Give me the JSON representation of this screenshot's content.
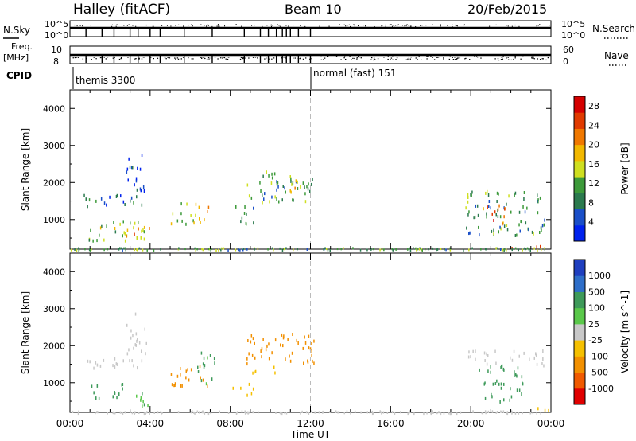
{
  "header": {
    "title": "Halley (fitACF)",
    "beam": "Beam 10",
    "date": "20/Feb/2015"
  },
  "strips": {
    "nsky_label": "N.Sky",
    "nsky_ticks": [
      "10^5",
      "10^0"
    ],
    "nsearch_label": "N.Search",
    "nsearch_ticks": [
      "10^5",
      "10^0"
    ],
    "freq_label_1": "Freq.",
    "freq_label_2": "[MHz]",
    "freq_ticks": [
      "10",
      "8"
    ],
    "nave_label": "Nave",
    "nave_ticks": [
      "60",
      "0"
    ],
    "cpid_label": "CPID",
    "cpid_modes": [
      "themis 3300",
      "normal (fast) 151"
    ]
  },
  "chart_data": [
    {
      "type": "heatmap",
      "name": "power-panel",
      "ylabel": "Slant Range [km]",
      "y_ticks": [
        "1000",
        "2000",
        "3000",
        "4000"
      ],
      "ylim": [
        200,
        4500
      ],
      "xlim_hours": [
        0,
        24
      ],
      "marker_hour": 12,
      "colorbar": {
        "label": "Power [dB]",
        "ticks": [
          "4",
          "8",
          "12",
          "16",
          "20",
          "24",
          "28"
        ],
        "colors": [
          "#0022ee",
          "#1a4fc8",
          "#2b7a4e",
          "#3d9a3a",
          "#cfdf20",
          "#f2b800",
          "#f07800",
          "#e03a00",
          "#d40000"
        ],
        "range": [
          0,
          30
        ]
      },
      "echo_regions": [
        {
          "t": [
            0.6,
            3.8
          ],
          "r": [
            1350,
            1700
          ],
          "level": 6
        },
        {
          "t": [
            2.8,
            3.8
          ],
          "r": [
            1800,
            2900
          ],
          "level": 4
        },
        {
          "t": [
            0.9,
            4.0
          ],
          "r": [
            450,
            1000
          ],
          "level": 14
        },
        {
          "t": [
            2.5,
            4.0
          ],
          "r": [
            550,
            850
          ],
          "level": 20
        },
        {
          "t": [
            5.0,
            6.9
          ],
          "r": [
            900,
            1500
          ],
          "level": 16
        },
        {
          "t": [
            8.0,
            9.2
          ],
          "r": [
            900,
            1400
          ],
          "level": 8
        },
        {
          "t": [
            8.8,
            12.2
          ],
          "r": [
            1500,
            2350
          ],
          "level": 10
        },
        {
          "t": [
            10.6,
            11.6
          ],
          "r": [
            1700,
            2100
          ],
          "level": 18
        },
        {
          "t": [
            19.7,
            23.7
          ],
          "r": [
            600,
            1800
          ],
          "level": 10
        },
        {
          "t": [
            20.6,
            21.8
          ],
          "r": [
            900,
            1500
          ],
          "level": 22
        },
        {
          "t": [
            22.0,
            23.9
          ],
          "r": [
            250,
            350
          ],
          "level": 24
        }
      ]
    },
    {
      "type": "heatmap",
      "name": "velocity-panel",
      "ylabel": "Slant Range [km]",
      "y_ticks": [
        "1000",
        "2000",
        "3000",
        "4000"
      ],
      "ylim": [
        200,
        4500
      ],
      "xlim_hours": [
        0,
        24
      ],
      "x_ticks": [
        "00:00",
        "04:00",
        "08:00",
        "12:00",
        "16:00",
        "20:00",
        "00:00"
      ],
      "xlabel": "Time UT",
      "marker_hour": 12,
      "colorbar": {
        "label": "Velocity [m s^-1]",
        "ticks": [
          "1000",
          "500",
          "100",
          "25",
          "-25",
          "-100",
          "-500",
          "-1000"
        ],
        "colors": [
          "#1f3fbf",
          "#2e6ec9",
          "#3e9a5a",
          "#5ac84a",
          "#c8c8c8",
          "#f5c000",
          "#f29000",
          "#f05a00",
          "#e00000"
        ],
        "range": [
          -1000,
          1000
        ]
      },
      "echo_regions": [
        {
          "t": [
            0.6,
            3.8
          ],
          "r": [
            1350,
            1700
          ],
          "level": 0
        },
        {
          "t": [
            2.8,
            3.8
          ],
          "r": [
            1800,
            2900
          ],
          "level": 0
        },
        {
          "t": [
            0.9,
            2.9
          ],
          "r": [
            600,
            1000
          ],
          "level": 300
        },
        {
          "t": [
            2.9,
            4.0
          ],
          "r": [
            350,
            800
          ],
          "level": 80
        },
        {
          "t": [
            5.0,
            6.9
          ],
          "r": [
            900,
            1500
          ],
          "level": -150
        },
        {
          "t": [
            6.3,
            7.2
          ],
          "r": [
            1000,
            1900
          ],
          "level": 150
        },
        {
          "t": [
            8.0,
            9.2
          ],
          "r": [
            700,
            1000
          ],
          "level": -80
        },
        {
          "t": [
            8.8,
            12.2
          ],
          "r": [
            1500,
            2350
          ],
          "level": -300
        },
        {
          "t": [
            9.0,
            10.5
          ],
          "r": [
            1300,
            1500
          ],
          "level": -60
        },
        {
          "t": [
            19.7,
            23.7
          ],
          "r": [
            1500,
            1900
          ],
          "level": 0
        },
        {
          "t": [
            20.4,
            22.6
          ],
          "r": [
            500,
            1500
          ],
          "level": 200
        },
        {
          "t": [
            22.0,
            23.9
          ],
          "r": [
            250,
            350
          ],
          "level": -40
        }
      ]
    }
  ]
}
